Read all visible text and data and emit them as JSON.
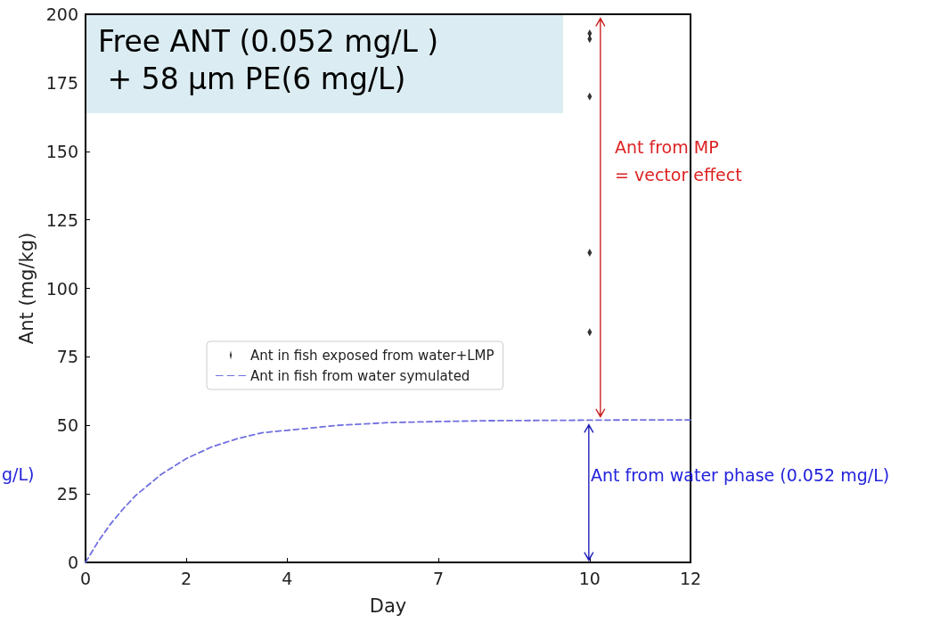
{
  "chart_data": {
    "type": "scatter",
    "xlabel": "Day",
    "ylabel": "Ant (mg/kg)",
    "xlim": [
      0,
      12
    ],
    "xticks": [
      0,
      2,
      4,
      7,
      10,
      12
    ],
    "ylim": [
      0,
      200
    ],
    "yticks": [
      0,
      25,
      50,
      75,
      100,
      125,
      150,
      175,
      200
    ],
    "grid": false,
    "legend": "center",
    "series": [
      {
        "name": "Ant in fish exposed from water+LMP",
        "marker": "diamond",
        "color": "#000000",
        "x": [
          10,
          10,
          10,
          10,
          10
        ],
        "values": [
          193,
          191,
          170,
          113,
          84
        ]
      },
      {
        "name": "Ant in fish from water symulated",
        "type": "line",
        "marker": "none",
        "line_style": "dashed",
        "color": "#7070e0",
        "x": [
          0,
          0.25,
          0.5,
          0.75,
          1,
          1.5,
          2,
          2.5,
          3,
          3.5,
          4,
          5,
          6,
          7,
          8,
          9,
          10,
          11,
          12
        ],
        "values": [
          0,
          7.6,
          14.1,
          19.6,
          24.5,
          32.1,
          37.9,
          42.1,
          45.1,
          47.3,
          48.2,
          50.0,
          51.0,
          51.4,
          51.7,
          51.8,
          51.9,
          52.0,
          52.0
        ]
      }
    ],
    "annotations": [
      "Free ANT (0.052 mg/L )\n + 58 μm PE(6 mg/L)",
      "g/L)",
      "Ant from MP\n= vector effect",
      "Ant from water phase (0.052 mg/L)"
    ]
  }
}
